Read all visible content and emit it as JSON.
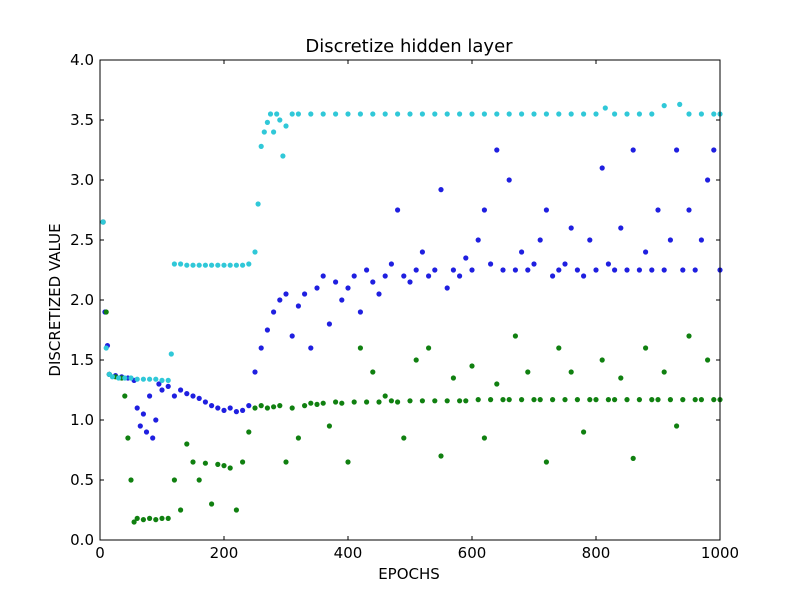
{
  "chart_data": {
    "type": "scatter",
    "title": "Discretize hidden layer",
    "xlabel": "EPOCHS",
    "ylabel": "DISCRETIZED VALUE",
    "xlim": [
      0,
      1000
    ],
    "ylim": [
      0.0,
      4.0
    ],
    "x_ticks": [
      0,
      200,
      400,
      600,
      800,
      1000
    ],
    "x_tick_labels": [
      "0",
      "200",
      "400",
      "600",
      "800",
      "1000"
    ],
    "y_ticks": [
      0.0,
      0.5,
      1.0,
      1.5,
      2.0,
      2.5,
      3.0,
      3.5,
      4.0
    ],
    "y_tick_labels": [
      "0.0",
      "0.5",
      "1.0",
      "1.5",
      "2.0",
      "2.5",
      "3.0",
      "3.5",
      "4.0"
    ],
    "grid": false,
    "legend": "none",
    "series": [
      {
        "color": "#1f1fe0",
        "points": [
          [
            5,
            2.65
          ],
          [
            8,
            1.9
          ],
          [
            12,
            1.62
          ],
          [
            15,
            1.38
          ],
          [
            25,
            1.37
          ],
          [
            35,
            1.36
          ],
          [
            45,
            1.35
          ],
          [
            55,
            1.33
          ],
          [
            60,
            1.1
          ],
          [
            65,
            0.95
          ],
          [
            70,
            1.05
          ],
          [
            75,
            0.9
          ],
          [
            80,
            1.2
          ],
          [
            85,
            0.85
          ],
          [
            90,
            1.0
          ],
          [
            95,
            1.3
          ],
          [
            100,
            1.25
          ],
          [
            110,
            1.28
          ],
          [
            120,
            1.2
          ],
          [
            130,
            1.25
          ],
          [
            140,
            1.22
          ],
          [
            150,
            1.2
          ],
          [
            160,
            1.18
          ],
          [
            170,
            1.15
          ],
          [
            180,
            1.12
          ],
          [
            190,
            1.1
          ],
          [
            200,
            1.08
          ],
          [
            210,
            1.1
          ],
          [
            220,
            1.07
          ],
          [
            230,
            1.08
          ],
          [
            240,
            1.12
          ],
          [
            250,
            1.4
          ],
          [
            260,
            1.6
          ],
          [
            270,
            1.75
          ],
          [
            280,
            1.9
          ],
          [
            290,
            2.0
          ],
          [
            300,
            2.05
          ],
          [
            310,
            1.7
          ],
          [
            320,
            1.95
          ],
          [
            330,
            2.05
          ],
          [
            340,
            1.6
          ],
          [
            350,
            2.1
          ],
          [
            360,
            2.2
          ],
          [
            370,
            1.8
          ],
          [
            380,
            2.15
          ],
          [
            390,
            2.0
          ],
          [
            400,
            2.1
          ],
          [
            410,
            2.2
          ],
          [
            420,
            1.9
          ],
          [
            430,
            2.25
          ],
          [
            440,
            2.15
          ],
          [
            450,
            2.05
          ],
          [
            460,
            2.2
          ],
          [
            470,
            2.3
          ],
          [
            480,
            2.75
          ],
          [
            490,
            2.2
          ],
          [
            500,
            2.15
          ],
          [
            510,
            2.25
          ],
          [
            520,
            2.4
          ],
          [
            530,
            2.2
          ],
          [
            540,
            2.25
          ],
          [
            550,
            2.92
          ],
          [
            560,
            2.1
          ],
          [
            570,
            2.25
          ],
          [
            580,
            2.2
          ],
          [
            590,
            2.35
          ],
          [
            600,
            2.25
          ],
          [
            610,
            2.5
          ],
          [
            620,
            2.75
          ],
          [
            630,
            2.3
          ],
          [
            640,
            3.25
          ],
          [
            650,
            2.25
          ],
          [
            660,
            3.0
          ],
          [
            670,
            2.25
          ],
          [
            680,
            2.4
          ],
          [
            690,
            2.25
          ],
          [
            700,
            2.3
          ],
          [
            710,
            2.5
          ],
          [
            720,
            2.75
          ],
          [
            730,
            2.2
          ],
          [
            740,
            2.25
          ],
          [
            750,
            2.3
          ],
          [
            760,
            2.6
          ],
          [
            770,
            2.25
          ],
          [
            780,
            2.2
          ],
          [
            790,
            2.5
          ],
          [
            800,
            2.25
          ],
          [
            810,
            3.1
          ],
          [
            820,
            2.3
          ],
          [
            830,
            2.25
          ],
          [
            840,
            2.6
          ],
          [
            850,
            2.25
          ],
          [
            860,
            3.25
          ],
          [
            870,
            2.25
          ],
          [
            880,
            2.4
          ],
          [
            890,
            2.25
          ],
          [
            900,
            2.75
          ],
          [
            910,
            2.25
          ],
          [
            920,
            2.5
          ],
          [
            930,
            3.25
          ],
          [
            940,
            2.25
          ],
          [
            950,
            2.75
          ],
          [
            960,
            2.25
          ],
          [
            970,
            2.5
          ],
          [
            980,
            3.0
          ],
          [
            990,
            3.25
          ],
          [
            1000,
            2.25
          ]
        ]
      },
      {
        "color": "#108010",
        "points": [
          [
            5,
            2.65
          ],
          [
            10,
            1.9
          ],
          [
            15,
            1.38
          ],
          [
            25,
            1.36
          ],
          [
            35,
            1.35
          ],
          [
            40,
            1.2
          ],
          [
            45,
            0.85
          ],
          [
            50,
            0.5
          ],
          [
            55,
            0.15
          ],
          [
            60,
            0.18
          ],
          [
            70,
            0.17
          ],
          [
            80,
            0.18
          ],
          [
            90,
            0.17
          ],
          [
            100,
            0.18
          ],
          [
            110,
            0.18
          ],
          [
            120,
            0.5
          ],
          [
            130,
            0.25
          ],
          [
            140,
            0.8
          ],
          [
            150,
            0.65
          ],
          [
            160,
            0.5
          ],
          [
            170,
            0.64
          ],
          [
            180,
            0.3
          ],
          [
            190,
            0.63
          ],
          [
            200,
            0.62
          ],
          [
            210,
            0.6
          ],
          [
            220,
            0.25
          ],
          [
            230,
            0.65
          ],
          [
            240,
            0.9
          ],
          [
            250,
            1.1
          ],
          [
            260,
            1.12
          ],
          [
            270,
            1.1
          ],
          [
            280,
            1.11
          ],
          [
            290,
            1.12
          ],
          [
            300,
            0.65
          ],
          [
            310,
            1.1
          ],
          [
            320,
            0.85
          ],
          [
            330,
            1.12
          ],
          [
            340,
            1.14
          ],
          [
            350,
            1.13
          ],
          [
            360,
            1.14
          ],
          [
            370,
            0.95
          ],
          [
            380,
            1.15
          ],
          [
            390,
            1.14
          ],
          [
            400,
            0.65
          ],
          [
            410,
            1.15
          ],
          [
            420,
            1.6
          ],
          [
            430,
            1.15
          ],
          [
            440,
            1.4
          ],
          [
            450,
            1.15
          ],
          [
            460,
            1.2
          ],
          [
            470,
            1.16
          ],
          [
            480,
            1.15
          ],
          [
            490,
            0.85
          ],
          [
            500,
            1.16
          ],
          [
            510,
            1.5
          ],
          [
            520,
            1.16
          ],
          [
            530,
            1.6
          ],
          [
            540,
            1.16
          ],
          [
            550,
            0.7
          ],
          [
            560,
            1.16
          ],
          [
            570,
            1.35
          ],
          [
            580,
            1.16
          ],
          [
            590,
            1.16
          ],
          [
            600,
            1.45
          ],
          [
            610,
            1.17
          ],
          [
            620,
            0.85
          ],
          [
            630,
            1.17
          ],
          [
            640,
            1.3
          ],
          [
            650,
            1.17
          ],
          [
            660,
            1.17
          ],
          [
            670,
            1.7
          ],
          [
            680,
            1.17
          ],
          [
            690,
            1.4
          ],
          [
            700,
            1.17
          ],
          [
            710,
            1.17
          ],
          [
            720,
            0.65
          ],
          [
            730,
            1.17
          ],
          [
            740,
            1.6
          ],
          [
            750,
            1.17
          ],
          [
            760,
            1.4
          ],
          [
            770,
            1.17
          ],
          [
            780,
            0.9
          ],
          [
            790,
            1.17
          ],
          [
            800,
            1.17
          ],
          [
            810,
            1.5
          ],
          [
            820,
            1.17
          ],
          [
            830,
            1.17
          ],
          [
            840,
            1.35
          ],
          [
            850,
            1.17
          ],
          [
            860,
            0.68
          ],
          [
            870,
            1.17
          ],
          [
            880,
            1.6
          ],
          [
            890,
            1.17
          ],
          [
            900,
            1.17
          ],
          [
            910,
            1.4
          ],
          [
            920,
            1.17
          ],
          [
            930,
            0.95
          ],
          [
            940,
            1.17
          ],
          [
            950,
            1.7
          ],
          [
            960,
            1.17
          ],
          [
            970,
            1.17
          ],
          [
            980,
            1.5
          ],
          [
            990,
            1.17
          ],
          [
            1000,
            1.17
          ]
        ]
      },
      {
        "color": "#30c8d8",
        "points": [
          [
            5,
            2.65
          ],
          [
            10,
            1.6
          ],
          [
            15,
            1.38
          ],
          [
            20,
            1.36
          ],
          [
            30,
            1.35
          ],
          [
            40,
            1.35
          ],
          [
            50,
            1.35
          ],
          [
            60,
            1.34
          ],
          [
            70,
            1.34
          ],
          [
            80,
            1.34
          ],
          [
            90,
            1.34
          ],
          [
            100,
            1.33
          ],
          [
            110,
            1.33
          ],
          [
            115,
            1.55
          ],
          [
            120,
            2.3
          ],
          [
            130,
            2.3
          ],
          [
            140,
            2.29
          ],
          [
            150,
            2.29
          ],
          [
            160,
            2.29
          ],
          [
            170,
            2.29
          ],
          [
            180,
            2.29
          ],
          [
            190,
            2.29
          ],
          [
            200,
            2.29
          ],
          [
            210,
            2.29
          ],
          [
            220,
            2.29
          ],
          [
            230,
            2.29
          ],
          [
            240,
            2.3
          ],
          [
            250,
            2.4
          ],
          [
            255,
            2.8
          ],
          [
            260,
            3.28
          ],
          [
            265,
            3.4
          ],
          [
            270,
            3.48
          ],
          [
            275,
            3.55
          ],
          [
            280,
            3.4
          ],
          [
            285,
            3.55
          ],
          [
            290,
            3.5
          ],
          [
            295,
            3.2
          ],
          [
            300,
            3.45
          ],
          [
            310,
            3.55
          ],
          [
            320,
            3.55
          ],
          [
            340,
            3.55
          ],
          [
            360,
            3.55
          ],
          [
            380,
            3.55
          ],
          [
            400,
            3.55
          ],
          [
            420,
            3.55
          ],
          [
            440,
            3.55
          ],
          [
            460,
            3.55
          ],
          [
            480,
            3.55
          ],
          [
            500,
            3.55
          ],
          [
            520,
            3.55
          ],
          [
            540,
            3.55
          ],
          [
            560,
            3.55
          ],
          [
            580,
            3.55
          ],
          [
            600,
            3.55
          ],
          [
            620,
            3.55
          ],
          [
            640,
            3.55
          ],
          [
            660,
            3.55
          ],
          [
            680,
            3.55
          ],
          [
            700,
            3.55
          ],
          [
            720,
            3.55
          ],
          [
            740,
            3.55
          ],
          [
            760,
            3.55
          ],
          [
            780,
            3.55
          ],
          [
            800,
            3.55
          ],
          [
            815,
            3.6
          ],
          [
            830,
            3.55
          ],
          [
            850,
            3.55
          ],
          [
            870,
            3.55
          ],
          [
            890,
            3.55
          ],
          [
            910,
            3.62
          ],
          [
            935,
            3.63
          ],
          [
            950,
            3.55
          ],
          [
            970,
            3.55
          ],
          [
            990,
            3.55
          ],
          [
            1000,
            3.55
          ]
        ]
      }
    ]
  }
}
